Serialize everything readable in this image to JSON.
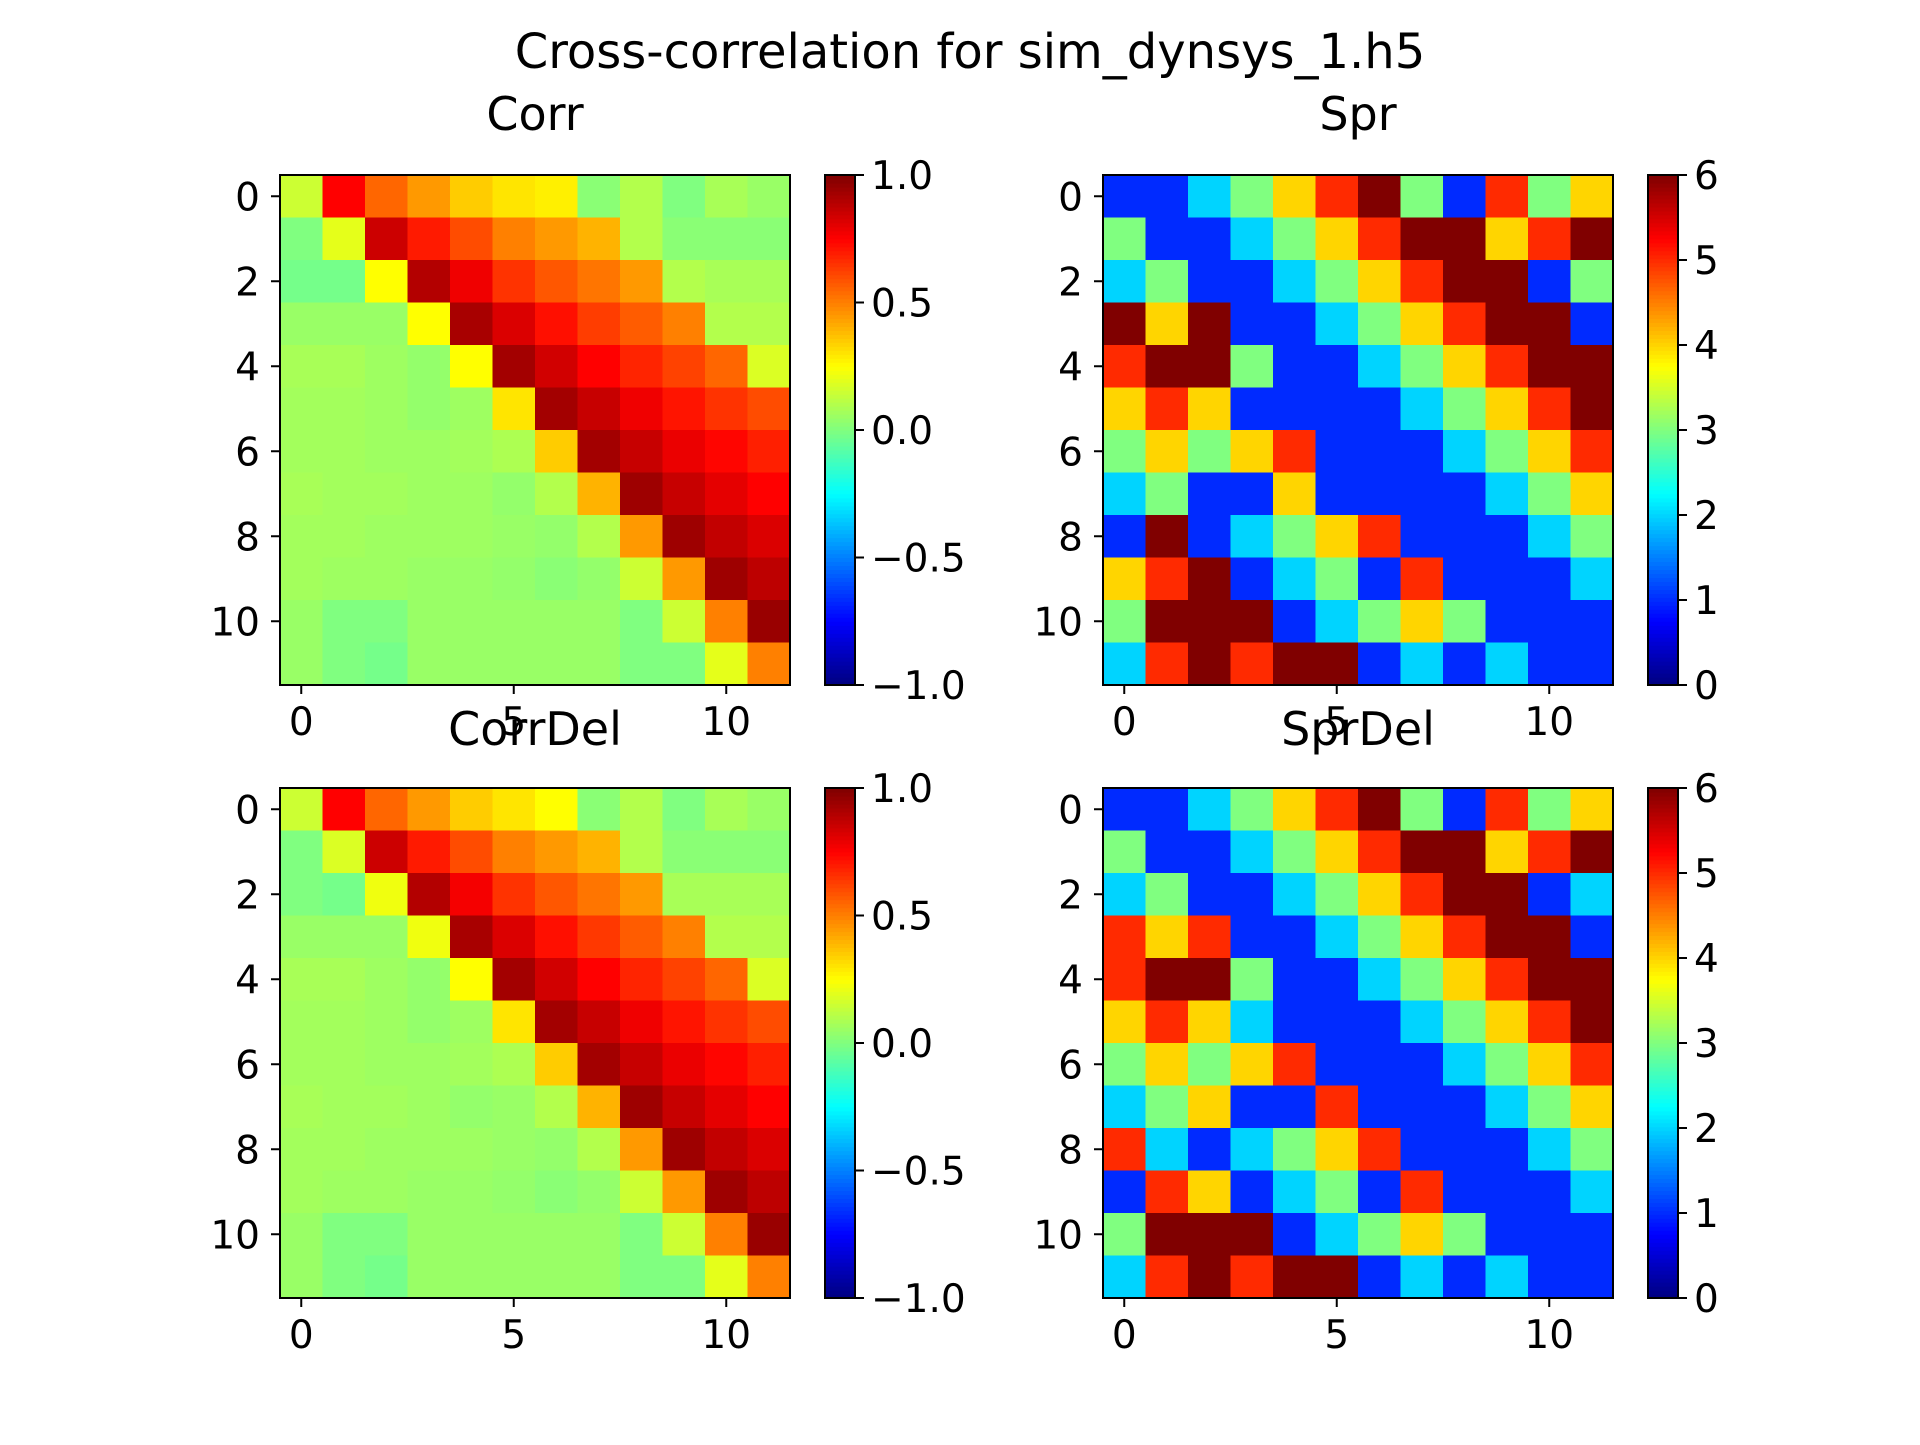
{
  "figure_title": "Cross-correlation for sim_dynsys_1.h5",
  "chart_data": [
    {
      "type": "heatmap",
      "title": "Corr",
      "colormap": "jet",
      "vmin": -1.0,
      "vmax": 1.0,
      "colorbar_ticks": [
        1.0,
        0.5,
        0.0,
        -0.5,
        -1.0
      ],
      "colorbar_tick_labels": [
        "1.0",
        "0.5",
        "0.0",
        "−0.5",
        "−1.0"
      ],
      "x_ticks": [
        0,
        5,
        10
      ],
      "y_ticks": [
        0,
        2,
        4,
        6,
        8,
        10
      ],
      "values": [
        [
          0.15,
          0.75,
          0.55,
          0.45,
          0.35,
          0.3,
          0.28,
          0.02,
          0.1,
          0.0,
          0.08,
          0.05
        ],
        [
          0.0,
          0.2,
          0.85,
          0.7,
          0.6,
          0.5,
          0.45,
          0.4,
          0.1,
          0.02,
          0.02,
          0.02
        ],
        [
          -0.02,
          -0.02,
          0.25,
          0.9,
          0.78,
          0.65,
          0.58,
          0.52,
          0.45,
          0.1,
          0.08,
          0.08
        ],
        [
          0.05,
          0.05,
          0.05,
          0.25,
          0.92,
          0.82,
          0.72,
          0.63,
          0.57,
          0.5,
          0.1,
          0.1
        ],
        [
          0.08,
          0.08,
          0.06,
          0.04,
          0.25,
          0.93,
          0.84,
          0.75,
          0.68,
          0.62,
          0.55,
          0.18
        ],
        [
          0.07,
          0.07,
          0.06,
          0.04,
          0.06,
          0.3,
          0.93,
          0.86,
          0.78,
          0.71,
          0.65,
          0.6
        ],
        [
          0.07,
          0.07,
          0.06,
          0.06,
          0.07,
          0.09,
          0.35,
          0.93,
          0.86,
          0.79,
          0.74,
          0.69
        ],
        [
          0.08,
          0.07,
          0.07,
          0.06,
          0.06,
          0.04,
          0.1,
          0.4,
          0.94,
          0.86,
          0.8,
          0.75
        ],
        [
          0.07,
          0.07,
          0.06,
          0.06,
          0.06,
          0.05,
          0.04,
          0.1,
          0.45,
          0.94,
          0.87,
          0.82
        ],
        [
          0.07,
          0.06,
          0.06,
          0.05,
          0.05,
          0.04,
          0.02,
          0.04,
          0.15,
          0.45,
          0.94,
          0.88
        ],
        [
          0.05,
          0.0,
          0.0,
          0.05,
          0.05,
          0.05,
          0.05,
          0.05,
          0.0,
          0.15,
          0.5,
          0.95
        ],
        [
          0.05,
          0.0,
          -0.02,
          0.05,
          0.05,
          0.05,
          0.05,
          0.05,
          0.0,
          0.0,
          0.2,
          0.5
        ]
      ]
    },
    {
      "type": "heatmap",
      "title": "Spr",
      "colormap": "jet",
      "vmin": 0,
      "vmax": 6,
      "colorbar_ticks": [
        6,
        5,
        4,
        3,
        2,
        1,
        0
      ],
      "colorbar_tick_labels": [
        "6",
        "5",
        "4",
        "3",
        "2",
        "1",
        "0"
      ],
      "x_ticks": [
        0,
        5,
        10
      ],
      "y_ticks": [
        0,
        2,
        4,
        6,
        8,
        10
      ],
      "values": [
        [
          1,
          1,
          2,
          3,
          4,
          5,
          6,
          3,
          1,
          5,
          3,
          4
        ],
        [
          3,
          1,
          1,
          2,
          3,
          4,
          5,
          6,
          6,
          4,
          5,
          6
        ],
        [
          2,
          3,
          1,
          1,
          2,
          3,
          4,
          5,
          6,
          6,
          1,
          3
        ],
        [
          6,
          4,
          6,
          1,
          1,
          2,
          3,
          4,
          5,
          6,
          6,
          1
        ],
        [
          5,
          6,
          6,
          3,
          1,
          1,
          2,
          3,
          4,
          5,
          6,
          6
        ],
        [
          4,
          5,
          4,
          1,
          1,
          1,
          1,
          2,
          3,
          4,
          5,
          6
        ],
        [
          3,
          4,
          3,
          4,
          5,
          1,
          1,
          1,
          2,
          3,
          4,
          5
        ],
        [
          2,
          3,
          1,
          1,
          4,
          1,
          1,
          1,
          1,
          2,
          3,
          4
        ],
        [
          1,
          6,
          1,
          2,
          3,
          4,
          5,
          1,
          1,
          1,
          2,
          3
        ],
        [
          4,
          5,
          6,
          1,
          2,
          3,
          1,
          5,
          1,
          1,
          1,
          2
        ],
        [
          3,
          6,
          6,
          6,
          1,
          2,
          3,
          4,
          3,
          1,
          1,
          1
        ],
        [
          2,
          5,
          6,
          5,
          6,
          6,
          1,
          2,
          1,
          2,
          1,
          1
        ]
      ]
    },
    {
      "type": "heatmap",
      "title": "CorrDel",
      "colormap": "jet",
      "vmin": -1.0,
      "vmax": 1.0,
      "colorbar_ticks": [
        1.0,
        0.5,
        0.0,
        -0.5,
        -1.0
      ],
      "colorbar_tick_labels": [
        "1.0",
        "0.5",
        "0.0",
        "−0.5",
        "−1.0"
      ],
      "x_ticks": [
        0,
        5,
        10
      ],
      "y_ticks": [
        0,
        2,
        4,
        6,
        8,
        10
      ],
      "values": [
        [
          0.15,
          0.75,
          0.55,
          0.45,
          0.35,
          0.3,
          0.25,
          0.02,
          0.1,
          0.0,
          0.08,
          0.05
        ],
        [
          0.0,
          0.18,
          0.85,
          0.7,
          0.6,
          0.5,
          0.45,
          0.4,
          0.1,
          0.02,
          0.02,
          0.02
        ],
        [
          0.0,
          -0.02,
          0.22,
          0.9,
          0.77,
          0.65,
          0.58,
          0.52,
          0.45,
          0.08,
          0.08,
          0.08
        ],
        [
          0.05,
          0.05,
          0.05,
          0.22,
          0.92,
          0.82,
          0.72,
          0.64,
          0.57,
          0.5,
          0.1,
          0.1
        ],
        [
          0.08,
          0.08,
          0.06,
          0.04,
          0.25,
          0.93,
          0.84,
          0.75,
          0.68,
          0.62,
          0.55,
          0.18
        ],
        [
          0.07,
          0.07,
          0.06,
          0.04,
          0.06,
          0.3,
          0.93,
          0.86,
          0.78,
          0.71,
          0.65,
          0.6
        ],
        [
          0.07,
          0.07,
          0.06,
          0.06,
          0.07,
          0.09,
          0.35,
          0.93,
          0.86,
          0.79,
          0.74,
          0.69
        ],
        [
          0.08,
          0.07,
          0.07,
          0.06,
          0.04,
          0.05,
          0.1,
          0.4,
          0.94,
          0.86,
          0.8,
          0.75
        ],
        [
          0.07,
          0.07,
          0.06,
          0.06,
          0.06,
          0.05,
          0.04,
          0.1,
          0.45,
          0.94,
          0.87,
          0.82
        ],
        [
          0.07,
          0.06,
          0.06,
          0.05,
          0.05,
          0.04,
          0.02,
          0.04,
          0.15,
          0.45,
          0.94,
          0.88
        ],
        [
          0.05,
          0.0,
          0.0,
          0.05,
          0.05,
          0.05,
          0.05,
          0.05,
          0.0,
          0.15,
          0.5,
          0.95
        ],
        [
          0.05,
          0.0,
          -0.02,
          0.05,
          0.05,
          0.05,
          0.05,
          0.05,
          0.0,
          0.0,
          0.2,
          0.5
        ]
      ]
    },
    {
      "type": "heatmap",
      "title": "SprDel",
      "colormap": "jet",
      "vmin": 0,
      "vmax": 6,
      "colorbar_ticks": [
        6,
        5,
        4,
        3,
        2,
        1,
        0
      ],
      "colorbar_tick_labels": [
        "6",
        "5",
        "4",
        "3",
        "2",
        "1",
        "0"
      ],
      "x_ticks": [
        0,
        5,
        10
      ],
      "y_ticks": [
        0,
        2,
        4,
        6,
        8,
        10
      ],
      "values": [
        [
          1,
          1,
          2,
          3,
          4,
          5,
          6,
          3,
          1,
          5,
          3,
          4
        ],
        [
          3,
          1,
          1,
          2,
          3,
          4,
          5,
          6,
          6,
          4,
          5,
          6
        ],
        [
          2,
          3,
          1,
          1,
          2,
          3,
          4,
          5,
          6,
          6,
          1,
          2
        ],
        [
          5,
          4,
          5,
          1,
          1,
          2,
          3,
          4,
          5,
          6,
          6,
          1
        ],
        [
          5,
          6,
          6,
          3,
          1,
          1,
          2,
          3,
          4,
          5,
          6,
          6
        ],
        [
          4,
          5,
          4,
          2,
          1,
          1,
          1,
          2,
          3,
          4,
          5,
          6
        ],
        [
          3,
          4,
          3,
          4,
          5,
          1,
          1,
          1,
          2,
          3,
          4,
          5
        ],
        [
          2,
          3,
          4,
          1,
          1,
          5,
          1,
          1,
          1,
          2,
          3,
          4
        ],
        [
          5,
          2,
          1,
          2,
          3,
          4,
          5,
          1,
          1,
          1,
          2,
          3
        ],
        [
          1,
          5,
          4,
          1,
          2,
          3,
          1,
          5,
          1,
          1,
          1,
          2
        ],
        [
          3,
          6,
          6,
          6,
          1,
          2,
          3,
          4,
          3,
          1,
          1,
          1
        ],
        [
          2,
          5,
          6,
          5,
          6,
          6,
          1,
          2,
          1,
          2,
          1,
          1
        ]
      ]
    }
  ]
}
